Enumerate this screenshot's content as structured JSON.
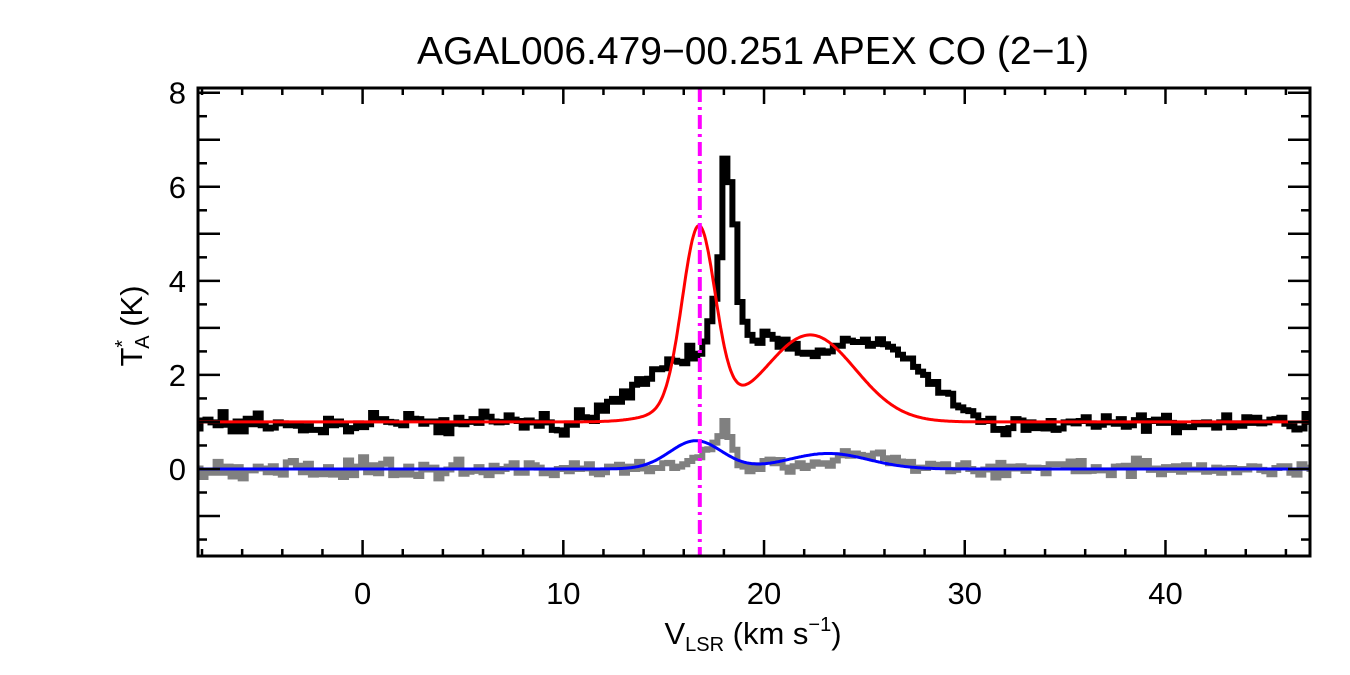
{
  "chart_data": {
    "type": "line",
    "title": "AGAL006.479−00.251   APEX CO (2−1)",
    "xlabel": {
      "main": "V",
      "sub": "LSR",
      "rest": " (km s",
      "sup": "−1",
      "end": ")"
    },
    "ylabel": {
      "main": "T",
      "sup": "*",
      "sub": "A",
      "rest": " (K)"
    },
    "xlim": [
      -8.2,
      47.2
    ],
    "ylim": [
      -1.85,
      8.1
    ],
    "xticks": [
      0,
      10,
      20,
      30,
      40
    ],
    "xtick_labels": [
      "0",
      "10",
      "20",
      "30",
      "40"
    ],
    "yticks": [
      0,
      2,
      4,
      6,
      8
    ],
    "ytick_labels": [
      "0",
      "2",
      "4",
      "6",
      "8"
    ],
    "yticks_major_unlabeled": [
      -1,
      1,
      3,
      5,
      7
    ],
    "x_minor_step": 2,
    "y_minor_step": 0.5,
    "vline": {
      "x": 16.8,
      "color": "#ff00ff",
      "style": "dash-dot",
      "label": "source velocity"
    },
    "colors": {
      "spectrum": "#000000",
      "residual": "#808080",
      "fit": "#ff0000",
      "residual_fit": "#0000ff",
      "vline": "#ff00ff"
    },
    "series": [
      {
        "name": "observed spectrum",
        "style": "step",
        "color": "#000000",
        "x_start": -8.2,
        "x_step": 0.25,
        "values": [
          0.86,
          1.03,
          1.05,
          0.99,
          0.93,
          1.21,
          0.94,
          0.8,
          1.01,
          0.8,
          1.07,
          0.95,
          1.18,
          0.93,
          0.86,
          0.88,
          0.99,
          0.97,
          0.93,
          0.94,
          0.92,
          0.82,
          0.91,
          0.83,
          0.83,
          0.78,
          1.07,
          0.93,
          1.01,
          0.95,
          0.8,
          0.87,
          0.97,
          0.89,
          0.95,
          1.19,
          1.04,
          1.06,
          1.0,
          0.99,
          0.96,
          0.93,
          1.17,
          1.07,
          1.06,
          0.96,
          1.01,
          1.01,
          0.78,
          1.04,
          0.76,
          0.96,
          1.09,
          0.95,
          1.0,
          1.06,
          0.98,
          1.22,
          1.11,
          1.01,
          0.99,
          1.0,
          1.14,
          1.05,
          1.02,
          0.88,
          1.03,
          0.99,
          0.92,
          1.17,
          0.99,
          0.83,
          0.82,
          0.73,
          0.97,
          0.94,
          1.25,
          1.1,
          1.09,
          1.02,
          1.35,
          1.24,
          1.43,
          1.49,
          1.43,
          1.65,
          1.52,
          1.79,
          1.91,
          1.81,
          1.92,
          2.12,
          2.12,
          2.14,
          2.33,
          2.3,
          2.28,
          2.25,
          2.62,
          2.35,
          2.45,
          2.71,
          3.14,
          3.62,
          4.5,
          6.6,
          6.1,
          5.2,
          3.55,
          3.13,
          2.85,
          2.73,
          2.68,
          2.92,
          2.85,
          2.77,
          2.6,
          2.75,
          2.56,
          2.66,
          2.47,
          2.45,
          2.47,
          2.4,
          2.52,
          2.47,
          2.5,
          2.62,
          2.62,
          2.77,
          2.73,
          2.7,
          2.7,
          2.75,
          2.62,
          2.66,
          2.76,
          2.65,
          2.6,
          2.54,
          2.43,
          2.35,
          2.35,
          2.17,
          2.07,
          2.0,
          1.81,
          1.85,
          1.62,
          1.62,
          1.6,
          1.35,
          1.31,
          1.25,
          1.23,
          1.14,
          1.0,
          1.02,
          1.07,
          0.83,
          0.85,
          0.74,
          0.87,
          1.06,
          1.03,
          0.83,
          0.99,
          0.87,
          0.95,
          0.86,
          1.02,
          0.83,
          0.86,
          0.99,
          1.01,
          0.97,
          1.02,
          1.1,
          0.97,
          0.9,
          0.94,
          1.12,
          0.99,
          0.96,
          1.06,
          0.9,
          0.93,
          1.04,
          1.14,
          0.81,
          1.02,
          1.05,
          0.98,
          1.13,
          0.98,
          0.78,
          0.93,
          0.89,
          0.89,
          0.98,
          0.95,
          0.99,
          0.95,
          0.88,
          0.99,
          1.14,
          0.89,
          0.97,
          0.92,
          1.1,
          0.98,
          1.09,
          0.97,
          0.99,
          1.05,
          1.06,
          1.09,
          0.96,
          0.91,
          0.84,
          0.86,
          1.17,
          1.0,
          0.88,
          1.02,
          1.09,
          0.86,
          0.93,
          0.98,
          0.86,
          0.99,
          0.82,
          0.98,
          1.05,
          0.81
        ]
      },
      {
        "name": "residual spectrum",
        "style": "step",
        "color": "#808080",
        "x_start": -8.2,
        "x_step": 0.25,
        "values": [
          0.01,
          -0.17,
          -0.07,
          -0.08,
          0.15,
          -0.08,
          0.05,
          -0.16,
          0.04,
          -0.2,
          -0.03,
          -0.03,
          0.05,
          0.01,
          -0.07,
          0.06,
          -0.08,
          -0.12,
          0.14,
          0.17,
          0.07,
          -0.07,
          0.11,
          -0.12,
          -0.03,
          -0.11,
          0.04,
          -0.12,
          -0.04,
          -0.17,
          0.18,
          -0.13,
          0.05,
          0.25,
          -0.07,
          0.08,
          -0.09,
          0.11,
          0.2,
          -0.13,
          -0.06,
          -0.12,
          0.05,
          -0.12,
          -0.15,
          0.09,
          -0.01,
          0.03,
          -0.2,
          -0.09,
          -0.01,
          0.08,
          0.2,
          -0.1,
          -0.06,
          -0.04,
          0.04,
          -0.07,
          -0.13,
          0.07,
          -0.05,
          0.0,
          0.05,
          0.12,
          -0.08,
          -0.08,
          0.12,
          0.08,
          0.03,
          -0.09,
          -0.09,
          -0.13,
          0.0,
          0.02,
          -0.05,
          0.12,
          -0.0,
          0.01,
          0.1,
          -0.08,
          -0.11,
          -0.07,
          0.05,
          0.04,
          0.09,
          -0.08,
          0.05,
          0.0,
          0.15,
          0.01,
          -0.05,
          0.02,
          0.02,
          0.12,
          0.13,
          0.02,
          0.05,
          0.1,
          0.17,
          0.24,
          0.25,
          0.41,
          0.42,
          0.56,
          0.7,
          1.02,
          0.68,
          0.41,
          0.08,
          0.05,
          -0.05,
          0.08,
          0.0,
          0.17,
          0.2,
          0.12,
          0.19,
          0.03,
          -0.06,
          0.06,
          0.12,
          0.02,
          0.07,
          0.14,
          0.11,
          0.12,
          0.07,
          0.18,
          0.29,
          0.38,
          0.28,
          0.33,
          0.3,
          0.28,
          0.25,
          0.33,
          0.35,
          0.23,
          0.12,
          0.24,
          0.16,
          0.11,
          0.15,
          -0.04,
          0.03,
          0.02,
          0.11,
          0.07,
          0.09,
          0.1,
          -0.05,
          -0.02,
          0.08,
          0.12,
          -0.0,
          -0.05,
          -0.12,
          -0.01,
          0.05,
          -0.18,
          0.13,
          -0.13,
          0.05,
          0.01,
          0.06,
          -0.04,
          0.03,
          0.03,
          0.02,
          -0.09,
          0.1,
          0.1,
          0.1,
          0.05,
          0.16,
          -0.05,
          0.17,
          -0.05,
          -0.04,
          0.04,
          -0.03,
          -0.03,
          -0.13,
          0.05,
          0.06,
          0.07,
          -0.15,
          0.22,
          0.09,
          0.17,
          -0.02,
          0.01,
          -0.11,
          0.04,
          -0.02,
          0.06,
          -0.06,
          0.08,
          -0.01,
          -0.01,
          0.08,
          -0.06,
          -0.04,
          0.03,
          -0.08,
          0.01,
          0.02,
          -0.07,
          0.0,
          -0.01,
          0.06,
          0.05,
          -0.02,
          -0.05,
          -0.11,
          0.02,
          0.06,
          0.06,
          -0.08,
          -0.12,
          0.1,
          0.03,
          0.0,
          -0.07,
          0.05,
          0.14,
          -0.06,
          -0.1,
          -0.09,
          -0.1,
          -0.04,
          -0.02,
          -0.12,
          -0.11,
          -0.59
        ]
      },
      {
        "name": "gaussian fit",
        "style": "smooth",
        "color": "#ff0000",
        "baseline": 1.0,
        "components": [
          {
            "amp": 3.85,
            "center": 16.75,
            "sigma": 0.82
          },
          {
            "amp": 1.85,
            "center": 22.3,
            "sigma": 2.25
          },
          {
            "amp": 0.25,
            "center": 16.2,
            "sigma": 1.7
          }
        ]
      },
      {
        "name": "residual fit",
        "style": "smooth",
        "color": "#0000ff",
        "baseline": 0.0,
        "components": [
          {
            "amp": 0.6,
            "center": 16.6,
            "sigma": 1.3
          },
          {
            "amp": 0.33,
            "center": 23.2,
            "sigma": 2.0
          }
        ]
      }
    ]
  }
}
